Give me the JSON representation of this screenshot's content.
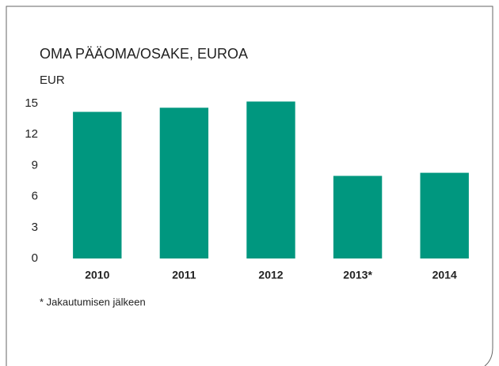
{
  "chart_data": {
    "type": "bar",
    "title": "OMA PÄÄOMA/OSAKE, EUROA",
    "y_label": "EUR",
    "categories": [
      "2010",
      "2011",
      "2012",
      "2013*",
      "2014"
    ],
    "values": [
      14.2,
      14.6,
      15.2,
      8.0,
      8.3
    ],
    "color": "#00977f",
    "ylim": [
      0,
      16
    ],
    "yticks": [
      0,
      3,
      6,
      9,
      12,
      15
    ],
    "grid": false,
    "note": "* Jakautumisen jälkeen"
  }
}
